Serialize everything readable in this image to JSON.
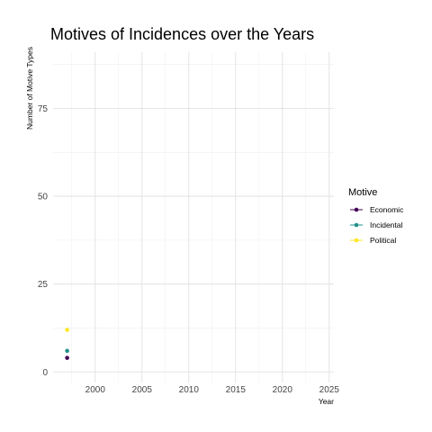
{
  "chart_data": {
    "type": "scatter",
    "title": "Motives of Incidences over the Years",
    "xlabel": "Year",
    "ylabel": "Number of Motive Types",
    "xlim": [
      1995.5,
      2025.5
    ],
    "ylim": [
      -3,
      91
    ],
    "x_ticks": [
      2000,
      2005,
      2010,
      2015,
      2020,
      2025
    ],
    "y_ticks": [
      0,
      25,
      50,
      75
    ],
    "grid": true,
    "legend_title": "Motive",
    "legend_position": "right",
    "series": [
      {
        "name": "Economic",
        "color": "#440154",
        "x": [
          1997
        ],
        "y": [
          4
        ]
      },
      {
        "name": "Incidental",
        "color": "#21908C",
        "x": [
          1997
        ],
        "y": [
          6
        ]
      },
      {
        "name": "Political",
        "color": "#FDE725",
        "x": [
          1997
        ],
        "y": [
          12
        ]
      }
    ]
  }
}
